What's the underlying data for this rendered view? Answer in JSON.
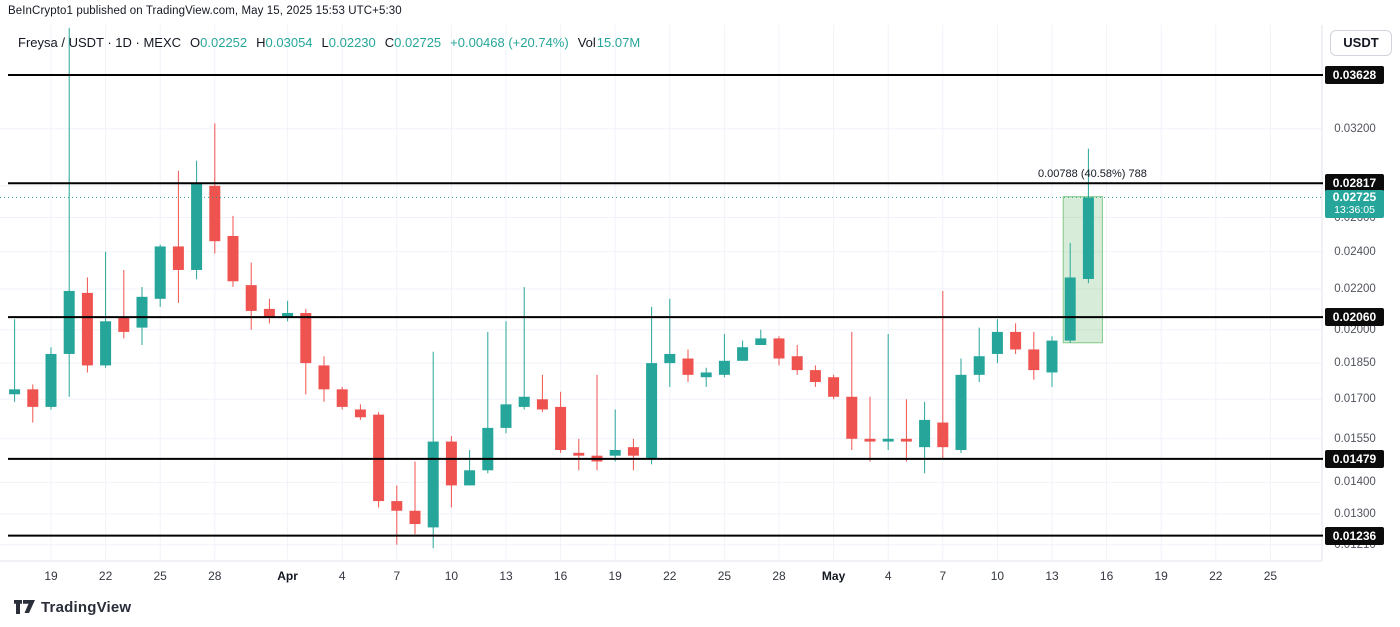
{
  "attribution": "BeInCrypto1 published on TradingView.com, May 15, 2025 15:53 UTC+5:30",
  "legend": {
    "symbol": "Freysa / USDT · 1D · MEXC",
    "ohlc": [
      {
        "label": "O",
        "value": "0.02252"
      },
      {
        "label": "H",
        "value": "0.03054"
      },
      {
        "label": "L",
        "value": "0.02230"
      },
      {
        "label": "C",
        "value": "0.02725"
      }
    ],
    "change": "+0.00468 (+20.74%)",
    "vol_label": "Vol",
    "vol_value": "15.07M"
  },
  "currency_button": "USDT",
  "watermark": "TradingView",
  "colors": {
    "up": "#26a69a",
    "down": "#ef5350",
    "level_line": "#000000",
    "grid": "#f0f3fa",
    "axis_border": "#e0e3eb",
    "badge_bg": "#0b0b0b",
    "current_badge_bg": "#26a69a",
    "highlight_fill": "rgba(76,175,80,0.22)",
    "highlight_stroke": "rgba(76,175,80,0.65)"
  },
  "chart_data": {
    "type": "candlestick",
    "title": "FREYSA / USDT 1D candlestick chart (MEXC)",
    "interval": "1D",
    "exchange": "MEXC",
    "scale": "log",
    "y_range_visible": [
      0.0118,
      0.041
    ],
    "x_range_visible": [
      "Mar 17",
      "May 27"
    ],
    "grid": true,
    "current_price": 0.02725,
    "countdown": "13:36:05",
    "level_lines": [
      {
        "price": 0.03628,
        "label": "0.03628"
      },
      {
        "price": 0.02817,
        "label": "0.02817"
      },
      {
        "price": 0.0206,
        "label": "0.02060"
      },
      {
        "price": 0.01479,
        "label": "0.01479"
      },
      {
        "price": 0.01236,
        "label": "0.01236"
      }
    ],
    "range_highlight": {
      "from_price": 0.0194,
      "to_price": 0.0273,
      "from_candle_index": 58,
      "to_candle_index": 59,
      "label": "0.00788 (40.58%) 788"
    },
    "y_axis_labels": [
      {
        "text": "0.03200",
        "price": 0.032
      },
      {
        "text": "0.02800",
        "price": 0.028
      },
      {
        "text": "0.02600",
        "price": 0.026
      },
      {
        "text": "0.02400",
        "price": 0.024
      },
      {
        "text": "0.02200",
        "price": 0.022
      },
      {
        "text": "0.02000",
        "price": 0.02
      },
      {
        "text": "0.01850",
        "price": 0.0185
      },
      {
        "text": "0.01700",
        "price": 0.017
      },
      {
        "text": "0.01550",
        "price": 0.0155
      },
      {
        "text": "0.01400",
        "price": 0.014
      },
      {
        "text": "0.01300",
        "price": 0.013
      },
      {
        "text": "0.01210",
        "price": 0.0121
      }
    ],
    "x_axis_ticks": [
      {
        "label": "19",
        "offset": 2
      },
      {
        "label": "22",
        "offset": 5
      },
      {
        "label": "25",
        "offset": 8
      },
      {
        "label": "28",
        "offset": 11
      },
      {
        "label": "Apr",
        "offset": 15,
        "bold": true
      },
      {
        "label": "4",
        "offset": 18
      },
      {
        "label": "7",
        "offset": 21
      },
      {
        "label": "10",
        "offset": 24
      },
      {
        "label": "13",
        "offset": 27
      },
      {
        "label": "16",
        "offset": 30
      },
      {
        "label": "19",
        "offset": 33
      },
      {
        "label": "22",
        "offset": 36
      },
      {
        "label": "25",
        "offset": 39
      },
      {
        "label": "28",
        "offset": 42
      },
      {
        "label": "May",
        "offset": 45,
        "bold": true
      },
      {
        "label": "4",
        "offset": 48
      },
      {
        "label": "7",
        "offset": 51
      },
      {
        "label": "10",
        "offset": 54
      },
      {
        "label": "13",
        "offset": 57
      },
      {
        "label": "16",
        "offset": 60
      },
      {
        "label": "19",
        "offset": 63
      },
      {
        "label": "22",
        "offset": 66
      },
      {
        "label": "25",
        "offset": 69
      }
    ],
    "candles": [
      {
        "t": "Mar 17",
        "o": 0.0172,
        "h": 0.0205,
        "l": 0.0169,
        "c": 0.0174
      },
      {
        "t": "Mar 18",
        "o": 0.0174,
        "h": 0.0176,
        "l": 0.0161,
        "c": 0.0167
      },
      {
        "t": "Mar 19",
        "o": 0.0167,
        "h": 0.0192,
        "l": 0.0166,
        "c": 0.0189
      },
      {
        "t": "Mar 20",
        "o": 0.0189,
        "h": 0.0405,
        "l": 0.0171,
        "c": 0.0219
      },
      {
        "t": "Mar 21",
        "o": 0.0218,
        "h": 0.0226,
        "l": 0.0181,
        "c": 0.0184
      },
      {
        "t": "Mar 22",
        "o": 0.0184,
        "h": 0.024,
        "l": 0.0183,
        "c": 0.0204
      },
      {
        "t": "Mar 23",
        "o": 0.0206,
        "h": 0.023,
        "l": 0.0196,
        "c": 0.0199
      },
      {
        "t": "Mar 24",
        "o": 0.0201,
        "h": 0.0221,
        "l": 0.0193,
        "c": 0.0216
      },
      {
        "t": "Mar 25",
        "o": 0.0215,
        "h": 0.0244,
        "l": 0.0211,
        "c": 0.0243
      },
      {
        "t": "Mar 26",
        "o": 0.0243,
        "h": 0.029,
        "l": 0.0213,
        "c": 0.023
      },
      {
        "t": "Mar 27",
        "o": 0.023,
        "h": 0.0297,
        "l": 0.0225,
        "c": 0.0282
      },
      {
        "t": "Mar 28",
        "o": 0.028,
        "h": 0.0324,
        "l": 0.0239,
        "c": 0.0246
      },
      {
        "t": "Mar 29",
        "o": 0.0249,
        "h": 0.0261,
        "l": 0.0221,
        "c": 0.0224
      },
      {
        "t": "Mar 30",
        "o": 0.0222,
        "h": 0.0234,
        "l": 0.02,
        "c": 0.0209
      },
      {
        "t": "Mar 31",
        "o": 0.021,
        "h": 0.0215,
        "l": 0.0203,
        "c": 0.0206
      },
      {
        "t": "Apr 1",
        "o": 0.0206,
        "h": 0.0214,
        "l": 0.0204,
        "c": 0.0208
      },
      {
        "t": "Apr 2",
        "o": 0.0208,
        "h": 0.021,
        "l": 0.0172,
        "c": 0.0185
      },
      {
        "t": "Apr 3",
        "o": 0.0184,
        "h": 0.0188,
        "l": 0.0169,
        "c": 0.0174
      },
      {
        "t": "Apr 4",
        "o": 0.0174,
        "h": 0.0175,
        "l": 0.0166,
        "c": 0.0167
      },
      {
        "t": "Apr 5",
        "o": 0.0166,
        "h": 0.0168,
        "l": 0.0162,
        "c": 0.0163
      },
      {
        "t": "Apr 6",
        "o": 0.0164,
        "h": 0.0165,
        "l": 0.0132,
        "c": 0.0134
      },
      {
        "t": "Apr 7",
        "o": 0.0134,
        "h": 0.0139,
        "l": 0.0121,
        "c": 0.0131
      },
      {
        "t": "Apr 8",
        "o": 0.0131,
        "h": 0.0147,
        "l": 0.0124,
        "c": 0.0127
      },
      {
        "t": "Apr 9",
        "o": 0.0126,
        "h": 0.019,
        "l": 0.012,
        "c": 0.0154
      },
      {
        "t": "Apr 10",
        "o": 0.0154,
        "h": 0.0156,
        "l": 0.0132,
        "c": 0.0139
      },
      {
        "t": "Apr 11",
        "o": 0.0139,
        "h": 0.0151,
        "l": 0.0139,
        "c": 0.0144
      },
      {
        "t": "Apr 12",
        "o": 0.0144,
        "h": 0.0199,
        "l": 0.0143,
        "c": 0.0159
      },
      {
        "t": "Apr 13",
        "o": 0.0159,
        "h": 0.0204,
        "l": 0.0157,
        "c": 0.0168
      },
      {
        "t": "Apr 14",
        "o": 0.0167,
        "h": 0.0221,
        "l": 0.0166,
        "c": 0.0171
      },
      {
        "t": "Apr 15",
        "o": 0.017,
        "h": 0.018,
        "l": 0.0165,
        "c": 0.0166
      },
      {
        "t": "Apr 16",
        "o": 0.0167,
        "h": 0.0173,
        "l": 0.015,
        "c": 0.0151
      },
      {
        "t": "Apr 17",
        "o": 0.015,
        "h": 0.0155,
        "l": 0.0144,
        "c": 0.0149
      },
      {
        "t": "Apr 18",
        "o": 0.0149,
        "h": 0.018,
        "l": 0.0144,
        "c": 0.0147
      },
      {
        "t": "Apr 19",
        "o": 0.0149,
        "h": 0.0166,
        "l": 0.0147,
        "c": 0.0151
      },
      {
        "t": "Apr 20",
        "o": 0.0152,
        "h": 0.0155,
        "l": 0.0144,
        "c": 0.0149
      },
      {
        "t": "Apr 21",
        "o": 0.0148,
        "h": 0.0211,
        "l": 0.0146,
        "c": 0.0185
      },
      {
        "t": "Apr 22",
        "o": 0.0185,
        "h": 0.0215,
        "l": 0.0175,
        "c": 0.0189
      },
      {
        "t": "Apr 23",
        "o": 0.0187,
        "h": 0.0191,
        "l": 0.0177,
        "c": 0.018
      },
      {
        "t": "Apr 24",
        "o": 0.0179,
        "h": 0.0183,
        "l": 0.0175,
        "c": 0.0181
      },
      {
        "t": "Apr 25",
        "o": 0.018,
        "h": 0.0198,
        "l": 0.0179,
        "c": 0.0186
      },
      {
        "t": "Apr 26",
        "o": 0.0186,
        "h": 0.0195,
        "l": 0.0186,
        "c": 0.0192
      },
      {
        "t": "Apr 27",
        "o": 0.0193,
        "h": 0.02,
        "l": 0.0193,
        "c": 0.0196
      },
      {
        "t": "Apr 28",
        "o": 0.0196,
        "h": 0.0197,
        "l": 0.0184,
        "c": 0.0187
      },
      {
        "t": "Apr 29",
        "o": 0.0188,
        "h": 0.0193,
        "l": 0.018,
        "c": 0.0182
      },
      {
        "t": "Apr 30",
        "o": 0.0182,
        "h": 0.0184,
        "l": 0.0175,
        "c": 0.0177
      },
      {
        "t": "May 1",
        "o": 0.0179,
        "h": 0.018,
        "l": 0.017,
        "c": 0.0171
      },
      {
        "t": "May 2",
        "o": 0.0171,
        "h": 0.0199,
        "l": 0.0151,
        "c": 0.0155
      },
      {
        "t": "May 3",
        "o": 0.0155,
        "h": 0.0171,
        "l": 0.0147,
        "c": 0.0154
      },
      {
        "t": "May 4",
        "o": 0.0154,
        "h": 0.0198,
        "l": 0.0151,
        "c": 0.0155
      },
      {
        "t": "May 5",
        "o": 0.0155,
        "h": 0.017,
        "l": 0.0147,
        "c": 0.0154
      },
      {
        "t": "May 6",
        "o": 0.0152,
        "h": 0.0169,
        "l": 0.0143,
        "c": 0.0162
      },
      {
        "t": "May 7",
        "o": 0.0161,
        "h": 0.0219,
        "l": 0.0148,
        "c": 0.0152
      },
      {
        "t": "May 8",
        "o": 0.0151,
        "h": 0.0187,
        "l": 0.015,
        "c": 0.018
      },
      {
        "t": "May 9",
        "o": 0.018,
        "h": 0.0201,
        "l": 0.0177,
        "c": 0.0188
      },
      {
        "t": "May 10",
        "o": 0.0189,
        "h": 0.0205,
        "l": 0.0185,
        "c": 0.0199
      },
      {
        "t": "May 11",
        "o": 0.0199,
        "h": 0.0203,
        "l": 0.0189,
        "c": 0.0191
      },
      {
        "t": "May 12",
        "o": 0.0191,
        "h": 0.0199,
        "l": 0.0178,
        "c": 0.0182
      },
      {
        "t": "May 13",
        "o": 0.0181,
        "h": 0.0197,
        "l": 0.0175,
        "c": 0.0195
      },
      {
        "t": "May 14",
        "o": 0.0195,
        "h": 0.0245,
        "l": 0.0194,
        "c": 0.0226
      },
      {
        "t": "May 15",
        "o": 0.02252,
        "h": 0.03054,
        "l": 0.0223,
        "c": 0.02725
      }
    ]
  }
}
